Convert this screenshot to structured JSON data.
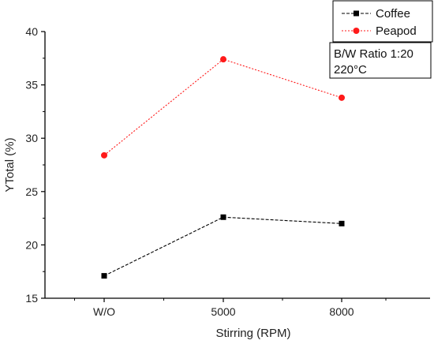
{
  "chart_data": {
    "type": "line",
    "categories": [
      "W/O",
      "5000",
      "8000"
    ],
    "series": [
      {
        "name": "Coffee",
        "values": [
          17.1,
          22.6,
          22.0
        ],
        "color": "#000000",
        "marker": "square",
        "line_style": "dashed"
      },
      {
        "name": "Peapod",
        "values": [
          28.4,
          37.4,
          33.8
        ],
        "color": "#ff1a1a",
        "marker": "circle",
        "line_style": "dotted"
      }
    ],
    "xlabel": "Stirring (RPM)",
    "ylabel": "YTotal (%)",
    "ylim": [
      15,
      40
    ],
    "yticks": [
      "15",
      "20",
      "25",
      "30",
      "35",
      "40"
    ],
    "grid": false,
    "legend_position": "top-right",
    "annotation": {
      "lines": [
        "B/W Ratio 1:20",
        "220°C"
      ],
      "position": "top-right"
    }
  }
}
